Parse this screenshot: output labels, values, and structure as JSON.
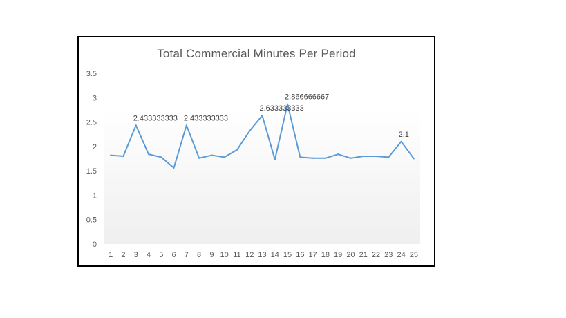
{
  "chart_data": {
    "type": "line",
    "title": "Total Commercial  Minutes  Per  Period",
    "xlabel": "",
    "ylabel": "",
    "x": [
      "1",
      "2",
      "3",
      "4",
      "5",
      "6",
      "7",
      "8",
      "9",
      "10",
      "11",
      "12",
      "13",
      "14",
      "15",
      "16",
      "17",
      "18",
      "19",
      "20",
      "21",
      "22",
      "23",
      "24",
      "25"
    ],
    "series": [
      {
        "values": [
          1.82,
          1.8,
          2.433333333,
          1.84,
          1.78,
          1.56,
          2.433333333,
          1.76,
          1.82,
          1.78,
          1.93,
          2.32,
          2.633333333,
          1.73,
          2.866666667,
          1.78,
          1.76,
          1.76,
          1.84,
          1.76,
          1.8,
          1.8,
          1.78,
          2.1,
          1.75
        ],
        "color": "#5b9bd5"
      }
    ],
    "data_labels": [
      {
        "index": 2,
        "text": "2.433333333"
      },
      {
        "index": 6,
        "text": "2.433333333"
      },
      {
        "index": 12,
        "text": "2.633333333"
      },
      {
        "index": 14,
        "text": "2.866666667"
      },
      {
        "index": 23,
        "text": "2.1"
      }
    ],
    "y_ticks": [
      "0",
      "0.5",
      "1",
      "1.5",
      "2",
      "2.5",
      "3",
      "3.5"
    ],
    "ylim": [
      0,
      3.5
    ],
    "grid": false,
    "plot_background": "gradient-grey"
  }
}
